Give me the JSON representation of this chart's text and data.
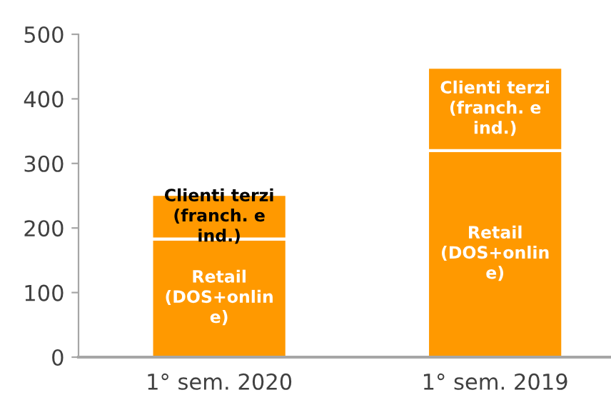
{
  "chart_data": {
    "type": "bar",
    "stacked": true,
    "categories": [
      "1° sem. 2020",
      "1° sem. 2019"
    ],
    "series": [
      {
        "name": "Retail\n(DOS+onlin\ne)",
        "color": "#ff9900",
        "values": [
          183,
          320
        ]
      },
      {
        "name": "Clienti terzi\n(franch. e\nind.)",
        "color": "#ff9900",
        "values": [
          69,
          129
        ]
      }
    ],
    "ylim": [
      0,
      500
    ],
    "yticks": [
      0,
      100,
      200,
      300,
      400,
      500
    ],
    "grid": false,
    "legend": false
  }
}
